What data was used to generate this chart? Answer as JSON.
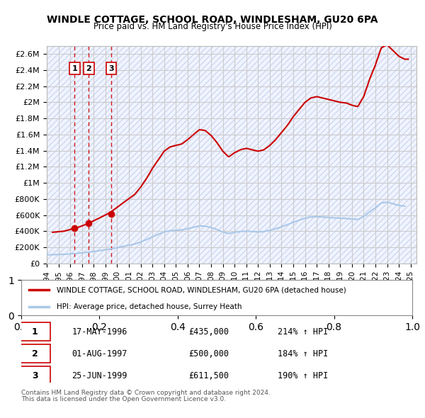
{
  "title": "WINDLE COTTAGE, SCHOOL ROAD, WINDLESHAM, GU20 6PA",
  "subtitle": "Price paid vs. HM Land Registry's House Price Index (HPI)",
  "property_label": "WINDLE COTTAGE, SCHOOL ROAD, WINDLESHAM, GU20 6PA (detached house)",
  "hpi_label": "HPI: Average price, detached house, Surrey Heath",
  "sales": [
    {
      "date": 1996.38,
      "price": 435000,
      "label": "1"
    },
    {
      "date": 1997.58,
      "price": 500000,
      "label": "2"
    },
    {
      "date": 1999.48,
      "price": 611500,
      "label": "3"
    }
  ],
  "table_rows": [
    {
      "num": "1",
      "date": "17-MAY-1996",
      "price": "£435,000",
      "hpi": "214% ↑ HPI"
    },
    {
      "num": "2",
      "date": "01-AUG-1997",
      "price": "£500,000",
      "hpi": "184% ↑ HPI"
    },
    {
      "num": "3",
      "date": "25-JUN-1999",
      "price": "£611,500",
      "hpi": "190% ↑ HPI"
    }
  ],
  "footnote1": "Contains HM Land Registry data © Crown copyright and database right 2024.",
  "footnote2": "This data is licensed under the Open Government Licence v3.0.",
  "xlim": [
    1994.0,
    2025.5
  ],
  "ylim": [
    0,
    2700000
  ],
  "yticks": [
    0,
    200000,
    400000,
    600000,
    800000,
    1000000,
    1200000,
    1400000,
    1600000,
    1800000,
    2000000,
    2200000,
    2400000,
    2600000
  ],
  "xticks": [
    1994,
    1995,
    1996,
    1997,
    1998,
    1999,
    2000,
    2001,
    2002,
    2003,
    2004,
    2005,
    2006,
    2007,
    2008,
    2009,
    2010,
    2011,
    2012,
    2013,
    2014,
    2015,
    2016,
    2017,
    2018,
    2019,
    2020,
    2021,
    2022,
    2023,
    2024,
    2025
  ],
  "property_color": "#cc0000",
  "hpi_color": "#aac8e8",
  "sale_marker_color": "#cc0000",
  "vline_color": "#cc0000",
  "grid_color": "#cccccc",
  "bg_color": "#f0f4ff",
  "legend_box_color": "#cc0000"
}
